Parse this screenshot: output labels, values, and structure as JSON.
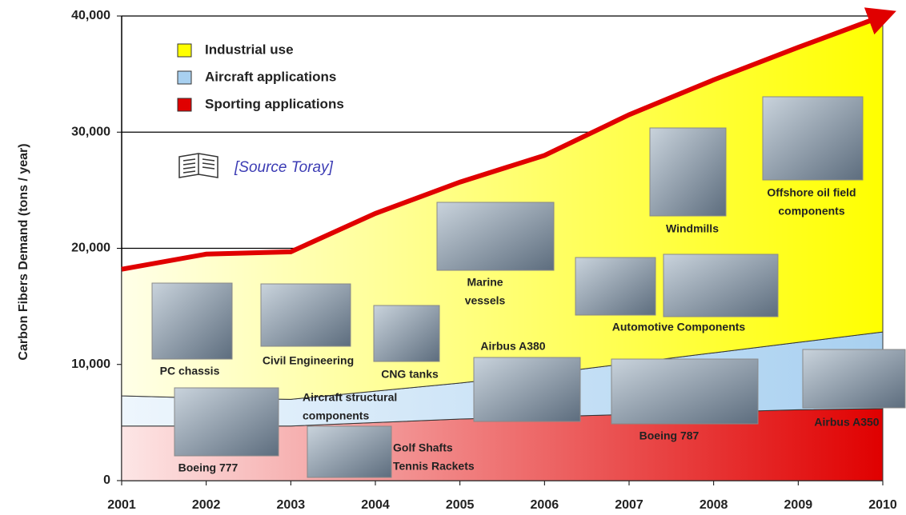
{
  "chart_data": {
    "type": "stacked-area",
    "y_label": "Carbon Fibers Demand (tons / year)",
    "x": [
      2001,
      2002,
      2003,
      2004,
      2005,
      2006,
      2007,
      2008,
      2009,
      2010
    ],
    "xlim": [
      2001,
      2010
    ],
    "xticks": [
      2001,
      2002,
      2003,
      2004,
      2005,
      2006,
      2007,
      2008,
      2009,
      2010
    ],
    "ylim": [
      0,
      40000
    ],
    "yticks": [
      0,
      {
        "value": 10000,
        "label": "10,000"
      },
      {
        "value": 20000,
        "label": "20,000"
      },
      {
        "value": 30000,
        "label": "30,000"
      },
      {
        "value": 40000,
        "label": "40,000"
      }
    ],
    "grid": true,
    "legend_position": "upper-left",
    "series": [
      {
        "name": "Sporting applications",
        "color": "#e00000",
        "values": [
          4700,
          4700,
          4700,
          5000,
          5300,
          5500,
          5700,
          5900,
          6100,
          6200
        ]
      },
      {
        "name": "Aircraft applications",
        "color": "#a8d0f0",
        "values": [
          2600,
          2400,
          2300,
          2700,
          3100,
          3700,
          4400,
          5100,
          5800,
          6600
        ]
      },
      {
        "name": "Industrial use",
        "color": "#ffff00",
        "values": [
          10900,
          12400,
          12700,
          15300,
          17300,
          18800,
          21400,
          23500,
          25400,
          27200
        ]
      }
    ],
    "source": "[Source Toray]",
    "annotations": [
      [
        "PC chassis"
      ],
      [
        "Civil Engineering"
      ],
      [
        "CNG tanks"
      ],
      [
        "Marine",
        "vessels"
      ],
      [
        "Windmills"
      ],
      [
        "Offshore oil field",
        "components"
      ],
      [
        "Automotive Components"
      ],
      [
        "Airbus A380"
      ],
      [
        "Aircraft structural",
        "components"
      ],
      [
        "Boeing 787"
      ],
      [
        "Airbus A350"
      ],
      [
        "Boeing 777"
      ],
      [
        "Golf Shafts",
        "Tennis Rackets"
      ]
    ]
  }
}
